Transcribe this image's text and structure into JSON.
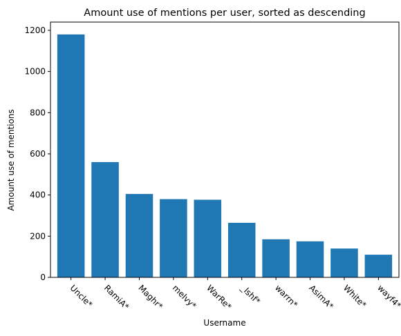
{
  "chart_data": {
    "type": "bar",
    "title": "Amount use of mentions per user, sorted as descending",
    "xlabel": "Username",
    "ylabel": "Amount use of mentions",
    "categories": [
      "Uncle*",
      "RamiA*",
      "Maghr*",
      "melvy*",
      "WarRe*",
      "_lshf*",
      "warrn*",
      "AsimA*",
      "White*",
      "wayf4*"
    ],
    "values": [
      1180,
      560,
      405,
      380,
      377,
      265,
      185,
      175,
      140,
      110
    ],
    "ylim": [
      0,
      1240
    ],
    "yticks": [
      0,
      200,
      400,
      600,
      800,
      1000,
      1200
    ],
    "bar_color": "#1f77b4",
    "grid": false,
    "legend": "none"
  }
}
